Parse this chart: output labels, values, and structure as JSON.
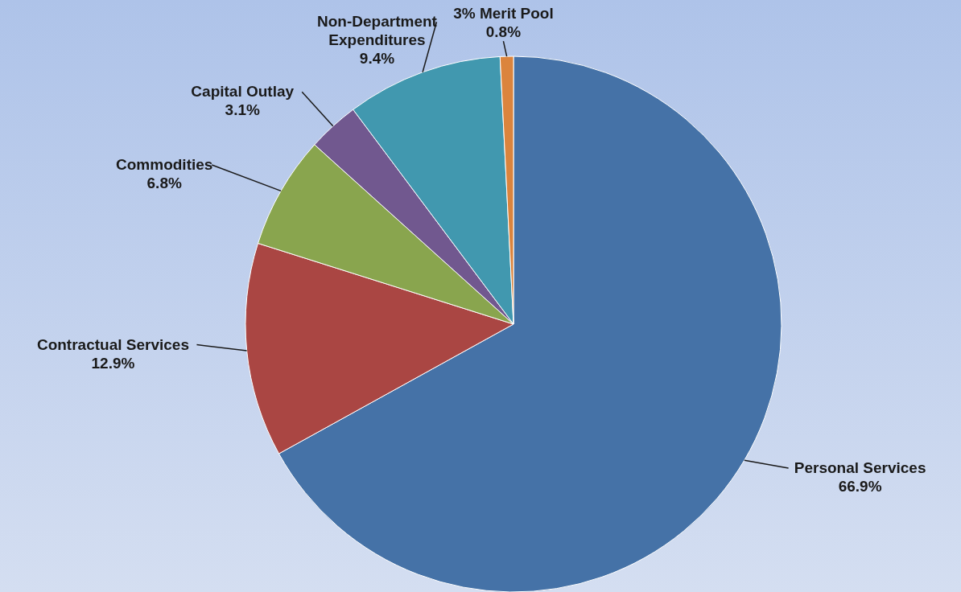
{
  "chart_data": {
    "type": "pie",
    "categories": [
      "Personal Services",
      "Contractual Services",
      "Commodities",
      "Capital Outlay",
      "Non-Department Expenditures",
      "3% Merit Pool"
    ],
    "values": [
      66.9,
      12.9,
      6.8,
      3.1,
      9.4,
      0.8
    ],
    "colors": [
      "#4572a7",
      "#aa4643",
      "#89a54e",
      "#71588f",
      "#4198af",
      "#db843d"
    ],
    "value_labels": [
      "66.9%",
      "12.9%",
      "6.8%",
      "3.1%",
      "9.4%",
      "0.8%"
    ]
  }
}
